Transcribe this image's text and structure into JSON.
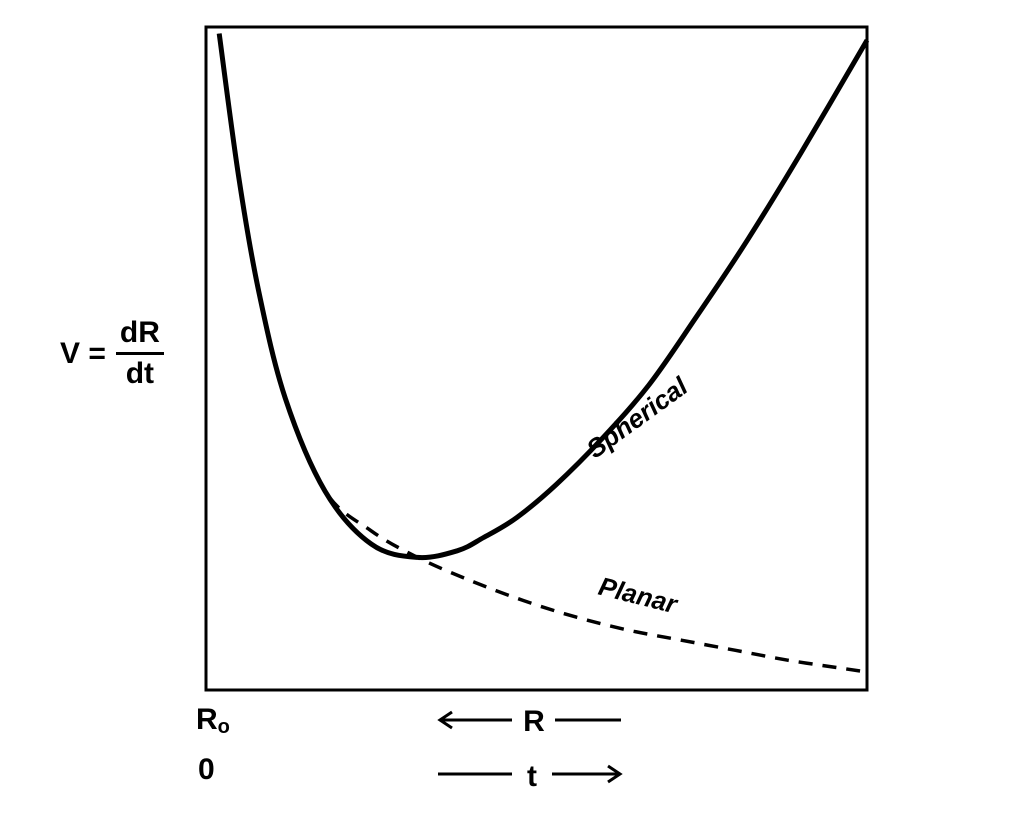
{
  "chart_data": {
    "type": "line",
    "title": "",
    "ylabel": {
      "lhs": "V =",
      "numerator": "dR",
      "denominator": "dt"
    },
    "x_axis": {
      "origin_R": "R",
      "origin_R_subscript": "o",
      "origin_t": "0",
      "label_R": "R",
      "label_t": "t",
      "R_direction": "decreasing to the right",
      "t_direction": "increasing to the right"
    },
    "xlim": [
      0,
      1
    ],
    "ylim": [
      0,
      1
    ],
    "grid": false,
    "ticks": false,
    "series": [
      {
        "name": "Spherical",
        "style": "solid",
        "color": "#000000",
        "x": [
          0.02,
          0.05,
          0.08,
          0.12,
          0.18,
          0.25,
          0.32,
          0.38,
          0.42,
          0.47,
          0.53,
          0.6,
          0.67,
          0.74,
          0.82,
          0.9,
          1.0
        ],
        "y": [
          0.99,
          0.77,
          0.6,
          0.44,
          0.3,
          0.22,
          0.2,
          0.21,
          0.23,
          0.26,
          0.31,
          0.38,
          0.46,
          0.56,
          0.68,
          0.81,
          0.98
        ]
      },
      {
        "name": "Planar",
        "style": "dashed",
        "color": "#000000",
        "x": [
          0.02,
          0.05,
          0.08,
          0.12,
          0.18,
          0.25,
          0.32,
          0.4,
          0.48,
          0.56,
          0.64,
          0.72,
          0.8,
          0.88,
          0.96,
          1.0
        ],
        "y": [
          0.99,
          0.77,
          0.6,
          0.44,
          0.3,
          0.24,
          0.2,
          0.165,
          0.135,
          0.11,
          0.09,
          0.075,
          0.06,
          0.045,
          0.033,
          0.027
        ]
      }
    ],
    "annotations": [
      {
        "text": "Spherical",
        "series": "Spherical",
        "x": 0.66,
        "y": 0.4,
        "angle": -36
      },
      {
        "text": "Planar",
        "series": "Planar",
        "x": 0.65,
        "y": 0.13,
        "angle": 14
      }
    ]
  }
}
